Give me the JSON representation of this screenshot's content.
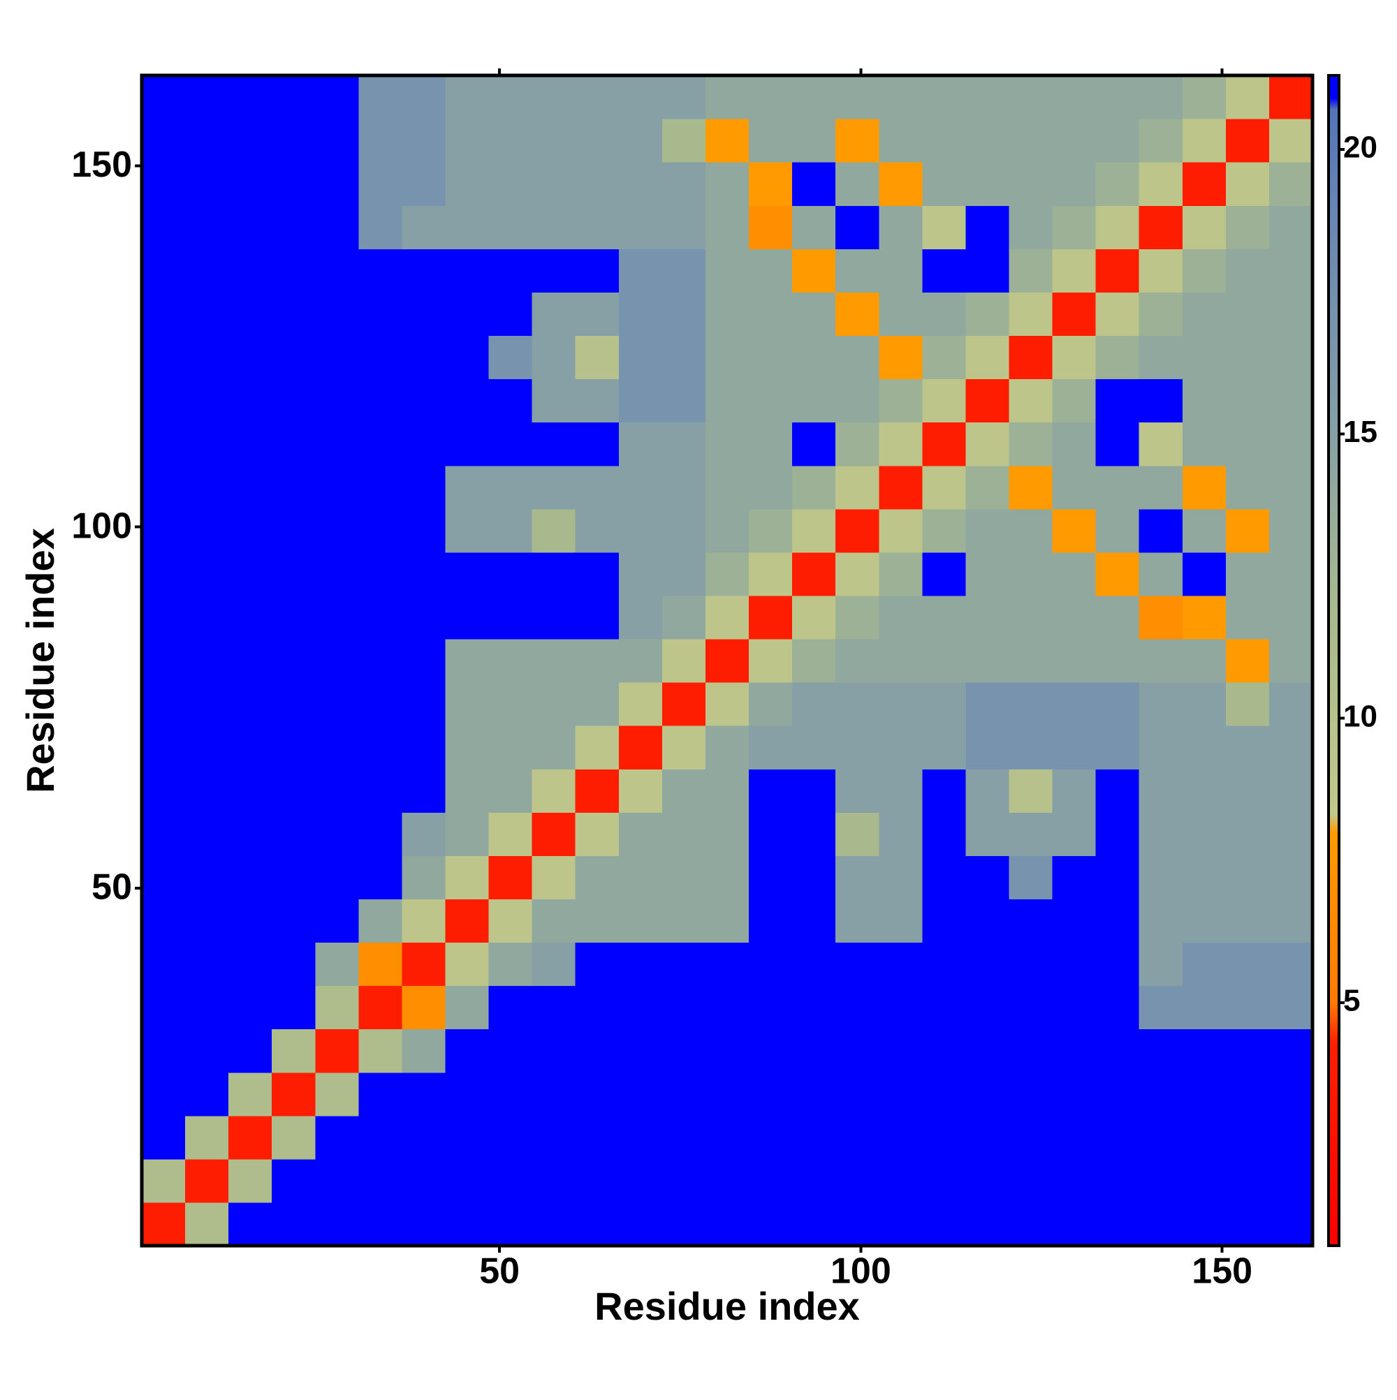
{
  "chart_data": {
    "type": "heatmap",
    "xlabel": "Residue index",
    "ylabel": "Residue index",
    "x": [
      3.5,
      9.5,
      15.5,
      21.5,
      27.5,
      33.5,
      39.5,
      45.5,
      51.5,
      57.5,
      63.5,
      69.5,
      75.5,
      81.5,
      87.5,
      93.5,
      99.5,
      105.5,
      111.5,
      117.5,
      123.5,
      129.5,
      135.5,
      141.5,
      147.5,
      153.5,
      159.5
    ],
    "y": [
      3.5,
      9.5,
      15.5,
      21.5,
      27.5,
      33.5,
      39.5,
      45.5,
      51.5,
      57.5,
      63.5,
      69.5,
      75.5,
      81.5,
      87.5,
      93.5,
      99.5,
      105.5,
      111.5,
      117.5,
      123.5,
      129.5,
      135.5,
      141.5,
      147.5,
      153.5,
      159.5
    ],
    "z": [
      [
        4,
        11,
        21,
        21,
        21,
        21,
        21,
        21,
        21,
        21,
        21,
        21,
        21,
        21,
        21,
        21,
        21,
        21,
        21,
        21,
        21,
        21,
        21,
        21,
        21,
        21,
        21
      ],
      [
        11,
        4,
        11,
        21,
        21,
        21,
        21,
        21,
        21,
        21,
        21,
        21,
        21,
        21,
        21,
        21,
        21,
        21,
        21,
        21,
        21,
        21,
        21,
        21,
        21,
        21,
        21
      ],
      [
        21,
        11,
        4,
        11,
        21,
        21,
        21,
        21,
        21,
        21,
        21,
        21,
        21,
        21,
        21,
        21,
        21,
        21,
        21,
        21,
        21,
        21,
        21,
        21,
        21,
        21,
        21
      ],
      [
        21,
        21,
        11,
        4,
        11,
        21,
        21,
        21,
        21,
        21,
        21,
        21,
        21,
        21,
        21,
        21,
        21,
        21,
        21,
        21,
        21,
        21,
        21,
        21,
        21,
        21,
        21
      ],
      [
        21,
        21,
        21,
        11,
        4,
        11,
        14,
        21,
        21,
        21,
        21,
        21,
        21,
        21,
        21,
        21,
        21,
        21,
        21,
        21,
        21,
        21,
        21,
        21,
        21,
        21,
        21
      ],
      [
        21,
        21,
        21,
        21,
        11,
        4,
        7,
        14,
        21,
        21,
        21,
        21,
        21,
        21,
        21,
        21,
        21,
        21,
        21,
        21,
        21,
        21,
        21,
        17,
        17,
        17,
        17
      ],
      [
        21,
        21,
        21,
        21,
        14,
        7,
        4,
        9,
        14,
        15,
        21,
        21,
        21,
        21,
        21,
        21,
        21,
        21,
        21,
        21,
        21,
        21,
        21,
        15,
        17,
        17,
        17
      ],
      [
        21,
        21,
        21,
        21,
        21,
        14,
        9,
        4,
        9,
        14,
        14,
        14,
        14,
        14,
        21,
        21,
        15,
        15,
        21,
        21,
        21,
        21,
        21,
        15,
        15,
        15,
        15
      ],
      [
        21,
        21,
        21,
        21,
        21,
        21,
        14,
        9,
        4,
        9,
        14,
        14,
        14,
        14,
        21,
        21,
        15,
        15,
        21,
        21,
        17,
        21,
        21,
        15,
        15,
        15,
        15
      ],
      [
        21,
        21,
        21,
        21,
        21,
        21,
        15,
        14,
        9,
        4,
        9,
        14,
        14,
        14,
        21,
        21,
        12,
        15,
        21,
        15,
        15,
        15,
        21,
        15,
        15,
        15,
        15
      ],
      [
        21,
        21,
        21,
        21,
        21,
        21,
        21,
        14,
        14,
        9,
        4,
        9,
        14,
        14,
        21,
        21,
        15,
        15,
        21,
        15,
        10,
        15,
        21,
        15,
        15,
        15,
        15
      ],
      [
        21,
        21,
        21,
        21,
        21,
        21,
        21,
        14,
        14,
        14,
        9,
        4,
        9,
        14,
        15,
        15,
        15,
        15,
        15,
        17,
        17,
        17,
        17,
        15,
        15,
        15,
        15
      ],
      [
        21,
        21,
        21,
        21,
        21,
        21,
        21,
        14,
        14,
        14,
        14,
        9,
        4,
        9,
        14,
        15,
        15,
        15,
        15,
        17,
        17,
        17,
        17,
        15,
        15,
        12,
        15
      ],
      [
        21,
        21,
        21,
        21,
        21,
        21,
        21,
        14,
        14,
        14,
        14,
        14,
        9,
        4,
        9,
        13,
        14,
        14,
        14,
        14,
        14,
        14,
        14,
        14,
        14,
        8,
        14
      ],
      [
        21,
        21,
        21,
        21,
        21,
        21,
        21,
        21,
        21,
        21,
        21,
        15,
        14,
        9,
        4,
        9,
        13,
        14,
        14,
        14,
        14,
        14,
        14,
        7,
        8,
        14,
        14
      ],
      [
        21,
        21,
        21,
        21,
        21,
        21,
        21,
        21,
        21,
        21,
        21,
        15,
        15,
        13,
        9,
        4,
        9,
        13,
        21,
        14,
        14,
        14,
        8,
        14,
        21,
        14,
        14
      ],
      [
        21,
        21,
        21,
        21,
        21,
        21,
        21,
        15,
        15,
        12,
        15,
        15,
        15,
        14,
        13,
        9,
        4,
        9,
        13,
        14,
        14,
        8,
        14,
        21,
        14,
        8,
        14
      ],
      [
        21,
        21,
        21,
        21,
        21,
        21,
        21,
        15,
        15,
        15,
        15,
        15,
        15,
        14,
        14,
        13,
        9,
        4,
        9,
        13,
        8,
        14,
        14,
        14,
        8,
        14,
        14
      ],
      [
        21,
        21,
        21,
        21,
        21,
        21,
        21,
        21,
        21,
        21,
        21,
        15,
        15,
        14,
        14,
        21,
        13,
        9,
        4,
        9,
        13,
        14,
        21,
        9,
        14,
        14,
        14
      ],
      [
        21,
        21,
        21,
        21,
        21,
        21,
        21,
        21,
        21,
        15,
        15,
        17,
        17,
        14,
        14,
        14,
        14,
        13,
        9,
        4,
        9,
        13,
        21,
        21,
        14,
        14,
        14
      ],
      [
        21,
        21,
        21,
        21,
        21,
        21,
        21,
        21,
        17,
        15,
        10,
        17,
        17,
        14,
        14,
        14,
        14,
        8,
        13,
        9,
        4,
        9,
        13,
        14,
        14,
        14,
        14
      ],
      [
        21,
        21,
        21,
        21,
        21,
        21,
        21,
        21,
        21,
        15,
        15,
        17,
        17,
        14,
        14,
        14,
        8,
        14,
        14,
        13,
        9,
        4,
        9,
        13,
        14,
        14,
        14
      ],
      [
        21,
        21,
        21,
        21,
        21,
        21,
        21,
        21,
        21,
        21,
        21,
        17,
        17,
        14,
        14,
        8,
        14,
        14,
        21,
        21,
        13,
        9,
        4,
        9,
        13,
        14,
        14
      ],
      [
        21,
        21,
        21,
        21,
        21,
        17,
        15,
        15,
        15,
        15,
        15,
        15,
        15,
        14,
        7,
        14,
        21,
        14,
        9,
        21,
        14,
        13,
        9,
        4,
        9,
        13,
        14
      ],
      [
        21,
        21,
        21,
        21,
        21,
        17,
        17,
        15,
        15,
        15,
        15,
        15,
        15,
        14,
        8,
        21,
        14,
        8,
        14,
        14,
        14,
        14,
        13,
        9,
        4,
        9,
        13
      ],
      [
        21,
        21,
        21,
        21,
        21,
        17,
        17,
        15,
        15,
        15,
        15,
        15,
        12,
        8,
        14,
        14,
        8,
        14,
        14,
        14,
        14,
        14,
        14,
        13,
        9,
        4,
        9
      ],
      [
        21,
        21,
        21,
        21,
        21,
        17,
        17,
        15,
        15,
        15,
        15,
        15,
        15,
        14,
        14,
        14,
        14,
        14,
        14,
        14,
        14,
        14,
        14,
        14,
        13,
        9,
        4
      ]
    ],
    "xlim": [
      0.5,
      162.5
    ],
    "ylim": [
      0.5,
      162.5
    ],
    "xticks": [
      50,
      100,
      150
    ],
    "yticks": [
      50,
      100,
      150
    ],
    "colorbar": {
      "lim": [
        0.73,
        21.3
      ],
      "ticks": [
        5,
        10,
        15,
        20
      ]
    },
    "colorscale": [
      [
        0.73,
        "#ff0000"
      ],
      [
        4.3,
        "#ff2000"
      ],
      [
        5,
        "#ff7a00"
      ],
      [
        8,
        "#ff9a00"
      ],
      [
        8.3,
        "#c2c88a"
      ],
      [
        12,
        "#a8b98e"
      ],
      [
        15,
        "#86a0a6"
      ],
      [
        19,
        "#6785b4"
      ],
      [
        20.7,
        "#5574b8"
      ],
      [
        20.9,
        "#0000ff"
      ],
      [
        21.3,
        "#0000ff"
      ]
    ]
  }
}
